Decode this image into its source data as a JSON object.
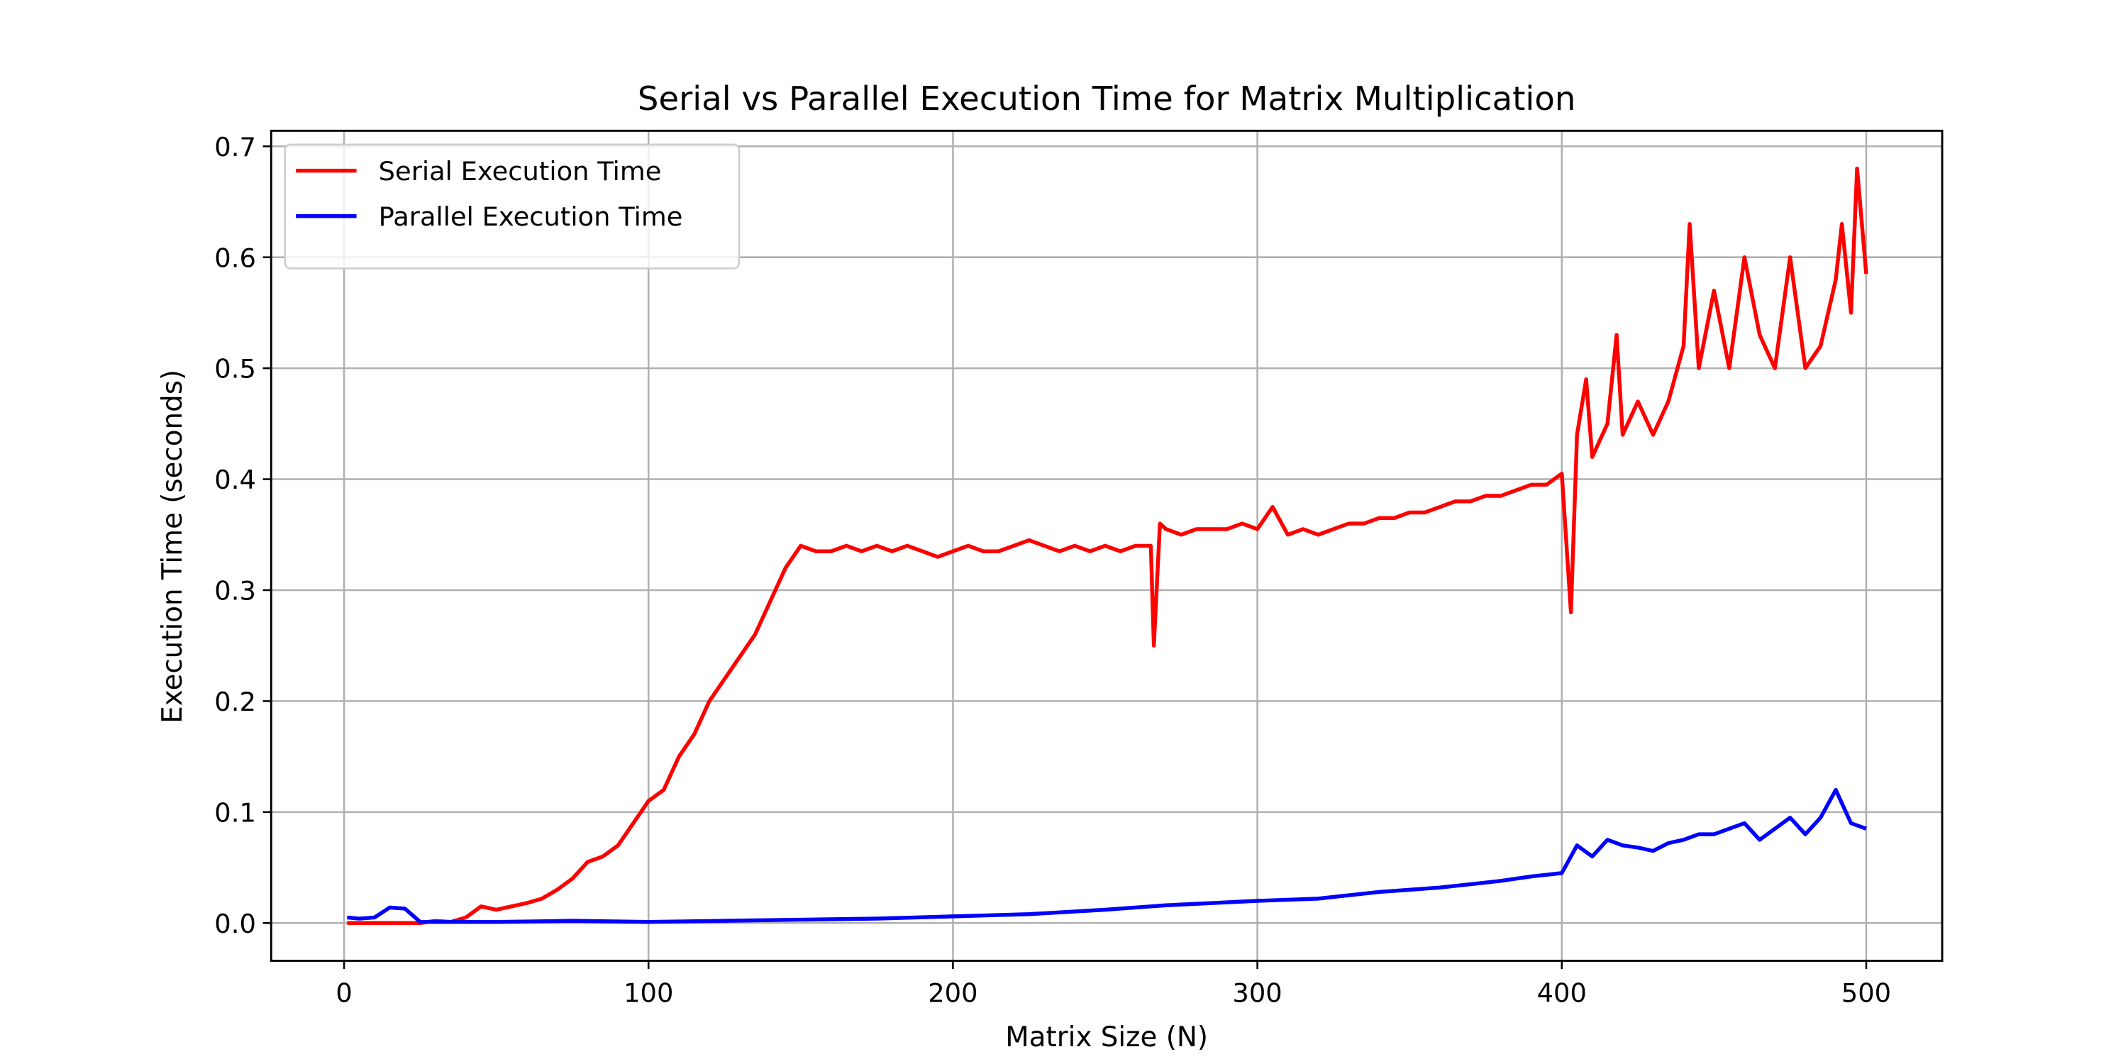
{
  "chart_data": {
    "type": "line",
    "title": "Serial vs Parallel Execution Time for Matrix Multiplication",
    "xlabel": "Matrix Size (N)",
    "ylabel": "Execution Time (seconds)",
    "xlim": [
      -23.95,
      524.95
    ],
    "ylim": [
      -0.034,
      0.714
    ],
    "xticks": [
      0,
      100,
      200,
      300,
      400,
      500
    ],
    "yticks": [
      {
        "value": 0,
        "label": "0.0"
      },
      0.1,
      0.2,
      0.3,
      0.4,
      0.5,
      0.6,
      0.7
    ],
    "grid": true,
    "legend": "upper left",
    "series": [
      {
        "name": "Serial Execution Time",
        "color": "#ff0000",
        "x": [
          1,
          5,
          10,
          15,
          20,
          25,
          30,
          35,
          40,
          45,
          50,
          55,
          60,
          65,
          70,
          75,
          80,
          85,
          90,
          95,
          100,
          105,
          110,
          115,
          120,
          125,
          130,
          135,
          140,
          145,
          150,
          155,
          160,
          165,
          170,
          175,
          180,
          185,
          190,
          195,
          200,
          205,
          210,
          215,
          220,
          225,
          230,
          235,
          240,
          245,
          250,
          255,
          260,
          265,
          266,
          268,
          270,
          275,
          280,
          285,
          290,
          295,
          300,
          305,
          310,
          315,
          320,
          325,
          330,
          335,
          340,
          345,
          350,
          355,
          360,
          365,
          370,
          375,
          380,
          385,
          390,
          395,
          400,
          403,
          405,
          408,
          410,
          415,
          418,
          420,
          425,
          430,
          435,
          440,
          442,
          445,
          450,
          455,
          460,
          465,
          470,
          475,
          480,
          485,
          490,
          492,
          495,
          497,
          500
        ],
        "values": [
          0,
          0,
          0,
          0,
          0,
          0,
          0.002,
          0.001,
          0.005,
          0.015,
          0.012,
          0.015,
          0.018,
          0.022,
          0.03,
          0.04,
          0.055,
          0.06,
          0.07,
          0.09,
          0.11,
          0.12,
          0.15,
          0.17,
          0.2,
          0.22,
          0.24,
          0.26,
          0.29,
          0.32,
          0.34,
          0.335,
          0.335,
          0.34,
          0.335,
          0.34,
          0.335,
          0.34,
          0.335,
          0.33,
          0.335,
          0.34,
          0.335,
          0.335,
          0.34,
          0.345,
          0.34,
          0.335,
          0.34,
          0.335,
          0.34,
          0.335,
          0.34,
          0.34,
          0.25,
          0.36,
          0.355,
          0.35,
          0.355,
          0.355,
          0.355,
          0.36,
          0.355,
          0.375,
          0.35,
          0.355,
          0.35,
          0.355,
          0.36,
          0.36,
          0.365,
          0.365,
          0.37,
          0.37,
          0.375,
          0.38,
          0.38,
          0.385,
          0.385,
          0.39,
          0.395,
          0.395,
          0.405,
          0.28,
          0.44,
          0.49,
          0.42,
          0.45,
          0.53,
          0.44,
          0.47,
          0.44,
          0.47,
          0.52,
          0.63,
          0.5,
          0.57,
          0.5,
          0.6,
          0.53,
          0.5,
          0.6,
          0.5,
          0.52,
          0.58,
          0.63,
          0.55,
          0.68,
          0.585
        ]
      },
      {
        "name": "Parallel Execution Time",
        "color": "#0000ff",
        "x": [
          1,
          5,
          10,
          15,
          20,
          25,
          30,
          50,
          75,
          100,
          125,
          150,
          175,
          200,
          225,
          250,
          265,
          270,
          300,
          320,
          340,
          350,
          360,
          370,
          380,
          390,
          400,
          405,
          410,
          415,
          420,
          425,
          430,
          435,
          440,
          445,
          450,
          455,
          460,
          465,
          470,
          475,
          480,
          485,
          490,
          495,
          500
        ],
        "values": [
          0.005,
          0.004,
          0.005,
          0.014,
          0.013,
          0.001,
          0.001,
          0.001,
          0.002,
          0.001,
          0.002,
          0.003,
          0.004,
          0.006,
          0.008,
          0.012,
          0.015,
          0.016,
          0.02,
          0.022,
          0.028,
          0.03,
          0.032,
          0.035,
          0.038,
          0.042,
          0.045,
          0.07,
          0.06,
          0.075,
          0.07,
          0.068,
          0.065,
          0.072,
          0.075,
          0.08,
          0.08,
          0.085,
          0.09,
          0.075,
          0.085,
          0.095,
          0.08,
          0.095,
          0.12,
          0.09,
          0.085
        ]
      }
    ]
  }
}
